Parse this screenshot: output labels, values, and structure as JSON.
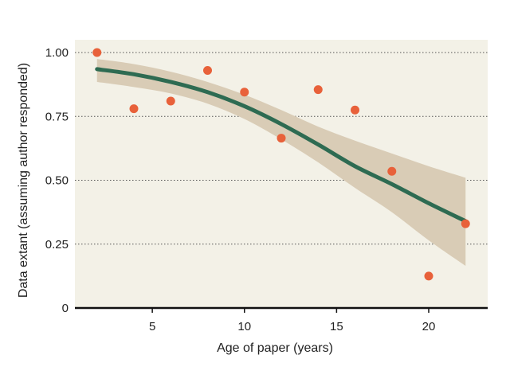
{
  "chart_data": {
    "type": "scatter",
    "xlabel": "Age of paper (years)",
    "ylabel": "Data extant (assuming author responded)",
    "xlim": [
      0.8,
      23.2
    ],
    "ylim": [
      0,
      1.05
    ],
    "x_ticks": [
      5,
      10,
      15,
      20
    ],
    "y_ticks": [
      0,
      0.25,
      0.5,
      0.75,
      1.0
    ],
    "x_tick_labels": [
      "5",
      "10",
      "15",
      "20"
    ],
    "y_tick_labels": [
      "0",
      "0.25",
      "0.50",
      "0.75",
      "1.00"
    ],
    "grid": "horizontal dotted",
    "series": [
      {
        "kind": "points",
        "color": "#e8613a",
        "points": [
          {
            "x": 2,
            "y": 1.0
          },
          {
            "x": 4,
            "y": 0.78
          },
          {
            "x": 6,
            "y": 0.81
          },
          {
            "x": 8,
            "y": 0.93
          },
          {
            "x": 10,
            "y": 0.845
          },
          {
            "x": 12,
            "y": 0.665
          },
          {
            "x": 14,
            "y": 0.855
          },
          {
            "x": 16,
            "y": 0.775
          },
          {
            "x": 18,
            "y": 0.535
          },
          {
            "x": 20,
            "y": 0.125
          },
          {
            "x": 22,
            "y": 0.33
          }
        ]
      },
      {
        "kind": "fit",
        "color": "#2e6b52",
        "x": [
          2,
          4,
          6,
          8,
          10,
          12,
          14,
          16,
          18,
          20,
          22
        ],
        "y": [
          0.935,
          0.915,
          0.885,
          0.845,
          0.79,
          0.72,
          0.64,
          0.555,
          0.485,
          0.41,
          0.34
        ],
        "lower": [
          0.885,
          0.865,
          0.84,
          0.8,
          0.74,
          0.66,
          0.57,
          0.47,
          0.375,
          0.265,
          0.165
        ],
        "upper": [
          0.975,
          0.955,
          0.925,
          0.885,
          0.835,
          0.775,
          0.71,
          0.655,
          0.605,
          0.555,
          0.51
        ],
        "band_color": "#d9ccb6"
      }
    ],
    "colors": {
      "plot_background": "#f3f1e7",
      "grid": "#555555",
      "axis": "#111111"
    }
  }
}
